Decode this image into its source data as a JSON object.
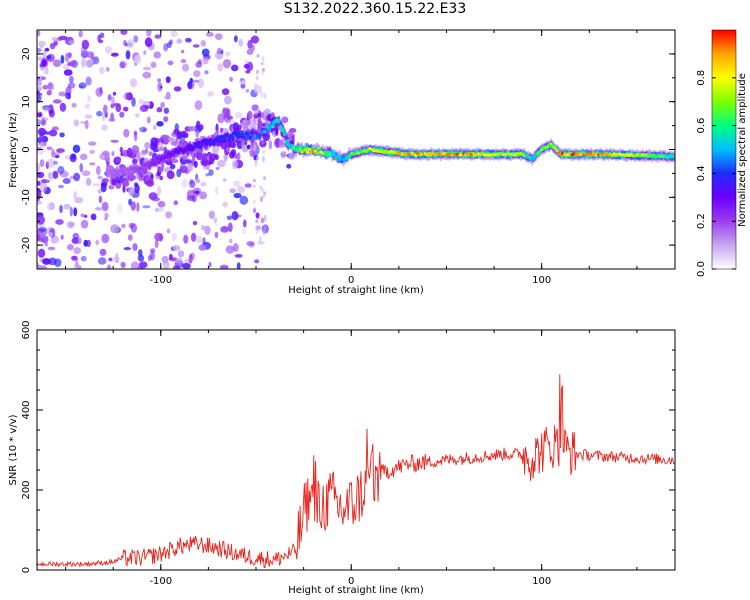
{
  "page": {
    "title": "S132.2022.360.15.22.E33"
  },
  "colors": {
    "snr_line": "#e8261e",
    "spectral_scale": [
      "#ffffff",
      "#c7a6f0",
      "#9b3df0",
      "#6a00ff",
      "#1f2bff",
      "#00bfff",
      "#00ff80",
      "#7cff00",
      "#ffff00",
      "#ffa500",
      "#ff0000"
    ]
  },
  "chart_data": [
    {
      "type": "heatmap",
      "title": "",
      "xlabel": "Height of straight line (km)",
      "ylabel": "Frequency (Hz)",
      "xlim": [
        -165,
        170
      ],
      "ylim": [
        -25,
        25
      ],
      "xticks": [
        -100,
        0,
        100
      ],
      "yticks": [
        -20,
        -10,
        0,
        10,
        20
      ],
      "colorbar": {
        "label": "Normalized spectral amplitude",
        "range": [
          0,
          1
        ],
        "ticks": [
          "0.0",
          "0.2",
          "0.4",
          "0.6",
          "0.8"
        ],
        "tick_values": [
          0,
          0.2,
          0.4,
          0.6,
          0.8
        ]
      },
      "ridge": {
        "x": [
          -130,
          -110,
          -95,
          -80,
          -60,
          -48,
          -42,
          -38,
          -33,
          -28,
          -20,
          -10,
          -5,
          0,
          10,
          30,
          60,
          90,
          95,
          100,
          105,
          110,
          130,
          170
        ],
        "freq": [
          -5,
          -4,
          -1,
          1,
          3,
          3,
          5,
          6,
          1,
          0,
          0,
          -1,
          -2,
          -1,
          0,
          -1,
          -1,
          -1,
          -2,
          0,
          1,
          -1,
          -1,
          -1.5
        ],
        "amplitude": [
          0.15,
          0.2,
          0.3,
          0.35,
          0.4,
          0.45,
          0.55,
          0.6,
          0.55,
          0.7,
          0.9,
          0.6,
          0.5,
          0.65,
          0.8,
          0.9,
          0.95,
          0.75,
          0.5,
          0.7,
          0.7,
          0.95,
          0.95,
          0.6
        ]
      }
    },
    {
      "type": "line",
      "title": "",
      "xlabel": "Height of straight line (km)",
      "ylabel": "SNR (10 * v/v)",
      "xlim": [
        -165,
        170
      ],
      "ylim": [
        0,
        600
      ],
      "xticks": [
        -100,
        0,
        100
      ],
      "yticks": [
        0,
        200,
        400,
        600
      ],
      "series": [
        {
          "x": [
            -165,
            -140,
            -125,
            -120,
            -110,
            -100,
            -90,
            -80,
            -70,
            -60,
            -50,
            -40,
            -30,
            -26,
            -24,
            -22,
            -20,
            -15,
            -10,
            -5,
            0,
            5,
            10,
            15,
            20,
            30,
            40,
            50,
            60,
            70,
            80,
            90,
            95,
            100,
            105,
            110,
            113,
            118,
            130,
            150,
            170
          ],
          "y": [
            15,
            15,
            20,
            30,
            30,
            40,
            60,
            65,
            55,
            40,
            30,
            25,
            45,
            110,
            160,
            170,
            150,
            160,
            180,
            150,
            160,
            190,
            220,
            240,
            250,
            265,
            270,
            275,
            280,
            285,
            290,
            290,
            280,
            300,
            310,
            320,
            300,
            290,
            285,
            280,
            275
          ]
        }
      ]
    }
  ]
}
